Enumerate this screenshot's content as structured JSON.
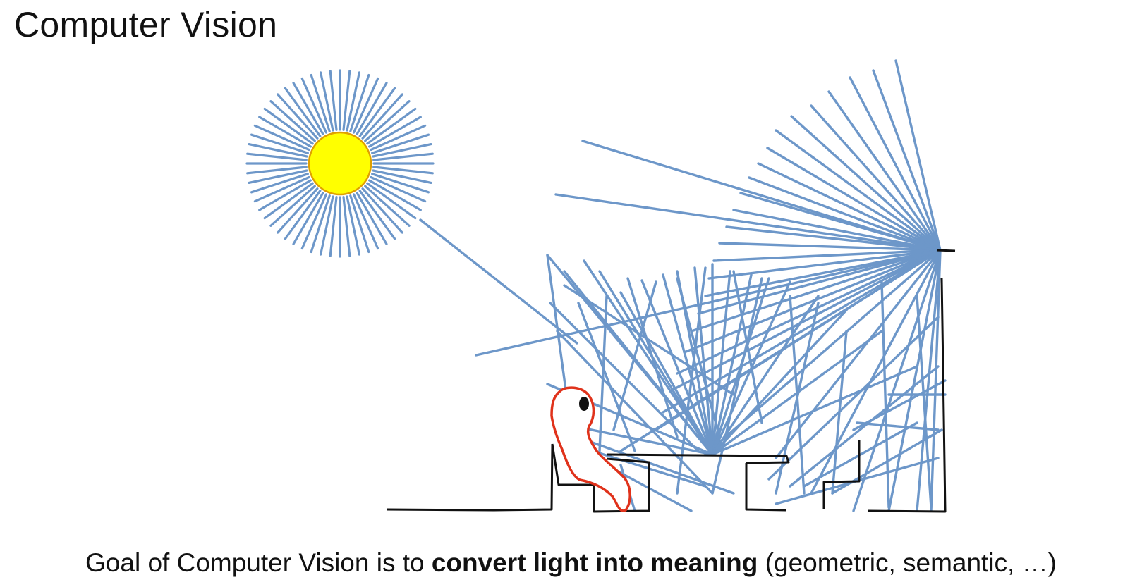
{
  "title": "Computer Vision",
  "caption": {
    "lead": "Goal of Computer Vision is to ",
    "emphasis": "convert light into meaning",
    "tail": " (geometric, semantic, …)"
  },
  "colors": {
    "ray": "#6d97c9",
    "sun_fill": "#ffff00",
    "sun_stroke": "#e0a000",
    "scene_outline": "#111111",
    "person_outline": "#e0321b",
    "person_eye": "#111111"
  },
  "icons": {
    "sun": "sun-icon",
    "person": "person-icon",
    "eye": "eye-icon"
  }
}
